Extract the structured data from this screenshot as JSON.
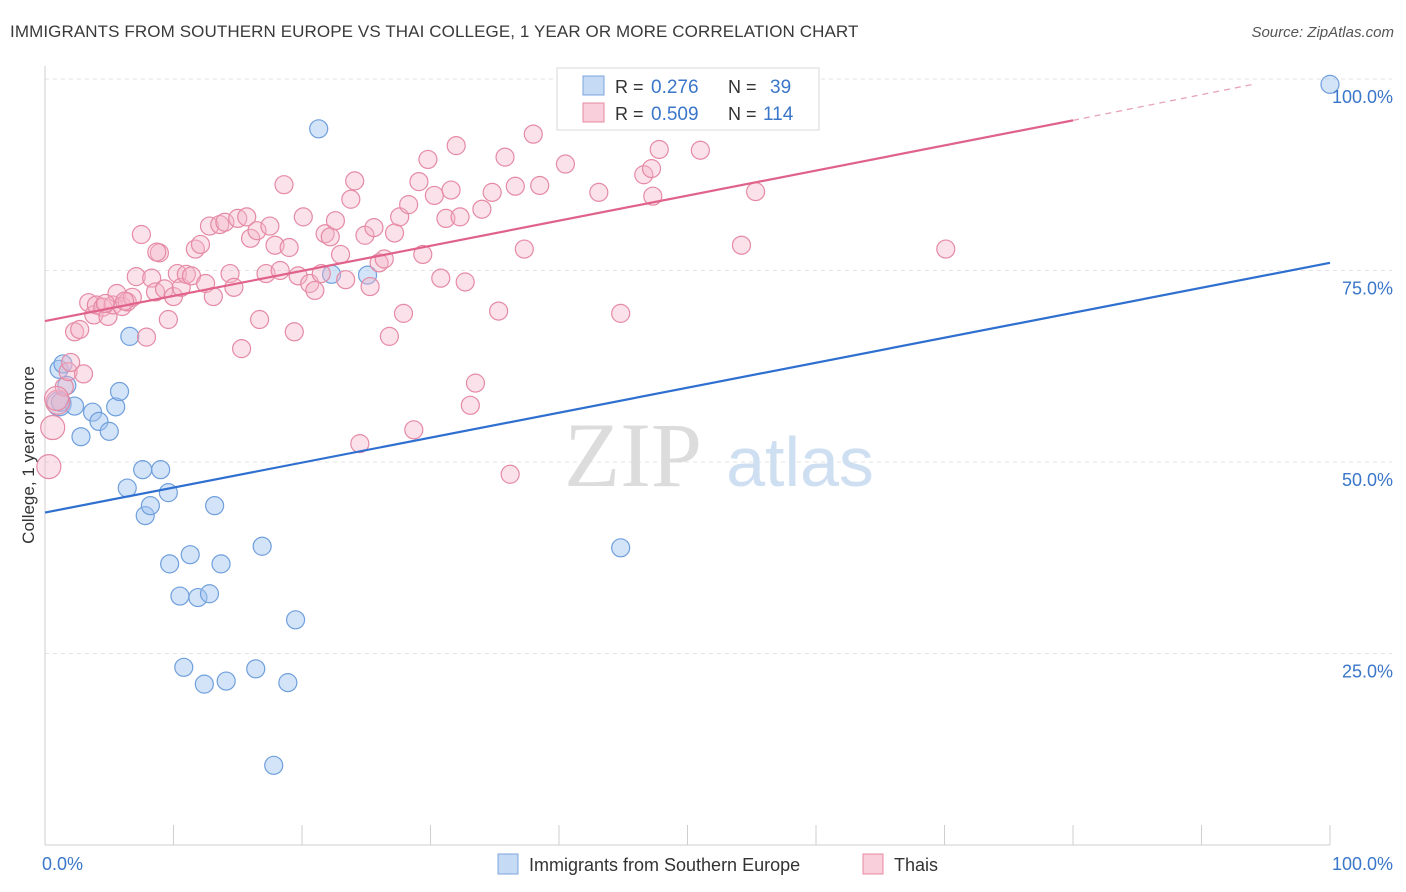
{
  "title": "IMMIGRANTS FROM SOUTHERN EUROPE VS THAI COLLEGE, 1 YEAR OR MORE CORRELATION CHART",
  "source": "Source: ZipAtlas.com",
  "watermark": {
    "zip": "ZIP",
    "atlas": "atlas"
  },
  "legend_box": {
    "rows": [
      {
        "r_label": "R =",
        "r_value": "0.276",
        "n_label": "N =",
        "n_value": "39",
        "color": "#6b9bd8"
      },
      {
        "r_label": "R =",
        "r_value": "0.509",
        "n_label": "N =",
        "n_value": "114",
        "color": "#e8799c"
      }
    ]
  },
  "bottom_legend": [
    {
      "label": "Immigrants from Southern Europe",
      "color": "#6b9bd8"
    },
    {
      "label": "Thais",
      "color": "#e8799c"
    }
  ],
  "chart_data": {
    "type": "scatter",
    "title": "IMMIGRANTS FROM SOUTHERN EUROPE VS THAI COLLEGE, 1 YEAR OR MORE CORRELATION CHART",
    "xlabel": "",
    "ylabel": "College, 1 year or more",
    "xlim": [
      0,
      100
    ],
    "ylim": [
      0,
      100
    ],
    "x_tick_labels": [
      "0.0%",
      "100.0%"
    ],
    "y_tick_labels": [
      "25.0%",
      "50.0%",
      "75.0%",
      "100.0%"
    ],
    "y_ticks": [
      25,
      50,
      75,
      100
    ],
    "grid": true,
    "legend_position": "bottom",
    "series": [
      {
        "name": "Immigrants from Southern Europe",
        "color": "#6b9bd8",
        "trend": {
          "x": [
            0,
            100
          ],
          "y": [
            43.4,
            76.0
          ]
        },
        "points": [
          [
            1.1,
            62.1
          ],
          [
            1.4,
            62.8
          ],
          [
            1.1,
            57.6
          ],
          [
            1.7,
            60.0
          ],
          [
            2.3,
            57.3
          ],
          [
            2.8,
            53.3
          ],
          [
            3.7,
            56.5
          ],
          [
            4.2,
            55.3
          ],
          [
            5.0,
            54.0
          ],
          [
            5.5,
            57.2
          ],
          [
            5.8,
            59.2
          ],
          [
            6.6,
            66.4
          ],
          [
            6.4,
            46.6
          ],
          [
            7.6,
            49.0
          ],
          [
            7.8,
            43.0
          ],
          [
            8.2,
            44.3
          ],
          [
            9.0,
            49.0
          ],
          [
            9.6,
            46.0
          ],
          [
            9.7,
            36.7
          ],
          [
            10.5,
            32.5
          ],
          [
            10.8,
            23.2
          ],
          [
            11.3,
            37.9
          ],
          [
            11.9,
            32.3
          ],
          [
            12.4,
            21.0
          ],
          [
            12.8,
            32.8
          ],
          [
            13.2,
            44.3
          ],
          [
            13.7,
            36.7
          ],
          [
            14.1,
            21.4
          ],
          [
            16.4,
            23.0
          ],
          [
            16.9,
            39.0
          ],
          [
            18.9,
            21.2
          ],
          [
            19.5,
            29.4
          ],
          [
            21.3,
            93.5
          ],
          [
            22.3,
            74.5
          ],
          [
            25.1,
            74.4
          ],
          [
            17.8,
            10.4
          ],
          [
            1.2,
            57.8
          ],
          [
            44.8,
            38.8
          ],
          [
            100.0,
            99.3
          ]
        ]
      },
      {
        "name": "Thais",
        "color": "#e8799c",
        "trend": {
          "x": [
            0,
            80
          ],
          "y": [
            68.4,
            94.6
          ]
        },
        "trend_dash": {
          "x": [
            80,
            94
          ],
          "y": [
            94.6,
            99.3
          ]
        },
        "points": [
          [
            0.3,
            49.4
          ],
          [
            0.6,
            54.5
          ],
          [
            1.0,
            57.8
          ],
          [
            1.5,
            59.8
          ],
          [
            1.8,
            61.8
          ],
          [
            2.0,
            63.0
          ],
          [
            2.3,
            67.0
          ],
          [
            2.7,
            67.3
          ],
          [
            3.0,
            61.5
          ],
          [
            3.4,
            70.8
          ],
          [
            3.8,
            69.2
          ],
          [
            4.0,
            70.5
          ],
          [
            4.5,
            70.2
          ],
          [
            4.9,
            69.0
          ],
          [
            5.3,
            70.5
          ],
          [
            5.6,
            72.0
          ],
          [
            6.0,
            70.3
          ],
          [
            6.4,
            70.9
          ],
          [
            6.8,
            71.5
          ],
          [
            7.1,
            74.2
          ],
          [
            7.5,
            79.7
          ],
          [
            7.9,
            66.3
          ],
          [
            8.3,
            74.0
          ],
          [
            8.6,
            72.2
          ],
          [
            8.9,
            77.3
          ],
          [
            9.3,
            72.6
          ],
          [
            9.6,
            68.6
          ],
          [
            10.0,
            71.6
          ],
          [
            10.3,
            74.6
          ],
          [
            10.6,
            72.8
          ],
          [
            11.0,
            74.5
          ],
          [
            11.4,
            74.3
          ],
          [
            11.7,
            77.8
          ],
          [
            12.1,
            78.4
          ],
          [
            12.5,
            73.3
          ],
          [
            12.8,
            80.8
          ],
          [
            13.1,
            71.6
          ],
          [
            13.6,
            81.0
          ],
          [
            14.0,
            81.3
          ],
          [
            14.4,
            74.6
          ],
          [
            14.7,
            72.8
          ],
          [
            15.0,
            81.8
          ],
          [
            15.3,
            64.8
          ],
          [
            15.7,
            82.0
          ],
          [
            16.0,
            79.2
          ],
          [
            16.5,
            80.2
          ],
          [
            16.7,
            68.6
          ],
          [
            17.2,
            74.6
          ],
          [
            17.5,
            80.8
          ],
          [
            17.9,
            78.3
          ],
          [
            18.3,
            75.0
          ],
          [
            18.6,
            86.2
          ],
          [
            19.0,
            78.0
          ],
          [
            19.4,
            67.0
          ],
          [
            19.7,
            74.3
          ],
          [
            20.1,
            82.0
          ],
          [
            20.6,
            73.3
          ],
          [
            21.0,
            72.4
          ],
          [
            21.5,
            74.6
          ],
          [
            21.8,
            79.8
          ],
          [
            22.2,
            79.4
          ],
          [
            22.6,
            81.5
          ],
          [
            23.0,
            77.1
          ],
          [
            23.4,
            73.8
          ],
          [
            23.8,
            84.3
          ],
          [
            24.1,
            86.7
          ],
          [
            24.5,
            52.4
          ],
          [
            24.9,
            79.6
          ],
          [
            25.3,
            72.9
          ],
          [
            25.6,
            80.6
          ],
          [
            26.0,
            76.0
          ],
          [
            26.4,
            76.5
          ],
          [
            26.8,
            66.4
          ],
          [
            27.2,
            79.9
          ],
          [
            27.6,
            82.0
          ],
          [
            27.9,
            69.4
          ],
          [
            28.3,
            83.6
          ],
          [
            28.7,
            54.2
          ],
          [
            29.1,
            86.6
          ],
          [
            29.4,
            77.1
          ],
          [
            29.8,
            89.5
          ],
          [
            30.3,
            84.8
          ],
          [
            30.8,
            74.0
          ],
          [
            31.2,
            81.8
          ],
          [
            31.6,
            85.5
          ],
          [
            32.0,
            91.3
          ],
          [
            32.3,
            82.0
          ],
          [
            32.7,
            73.5
          ],
          [
            33.1,
            57.4
          ],
          [
            33.5,
            60.3
          ],
          [
            34.0,
            83.0
          ],
          [
            34.8,
            85.2
          ],
          [
            35.3,
            69.7
          ],
          [
            35.8,
            89.8
          ],
          [
            36.2,
            48.4
          ],
          [
            36.6,
            86.0
          ],
          [
            37.3,
            77.8
          ],
          [
            38.0,
            92.8
          ],
          [
            38.5,
            86.1
          ],
          [
            40.5,
            88.9
          ],
          [
            43.1,
            85.2
          ],
          [
            44.8,
            69.4
          ],
          [
            46.6,
            87.5
          ],
          [
            47.2,
            88.3
          ],
          [
            47.3,
            84.7
          ],
          [
            47.8,
            90.8
          ],
          [
            51.0,
            90.7
          ],
          [
            54.2,
            78.3
          ],
          [
            55.3,
            85.3
          ],
          [
            70.1,
            77.8
          ],
          [
            0.9,
            58.3
          ],
          [
            4.7,
            70.7
          ],
          [
            6.2,
            71.0
          ],
          [
            8.7,
            77.4
          ]
        ]
      }
    ]
  }
}
